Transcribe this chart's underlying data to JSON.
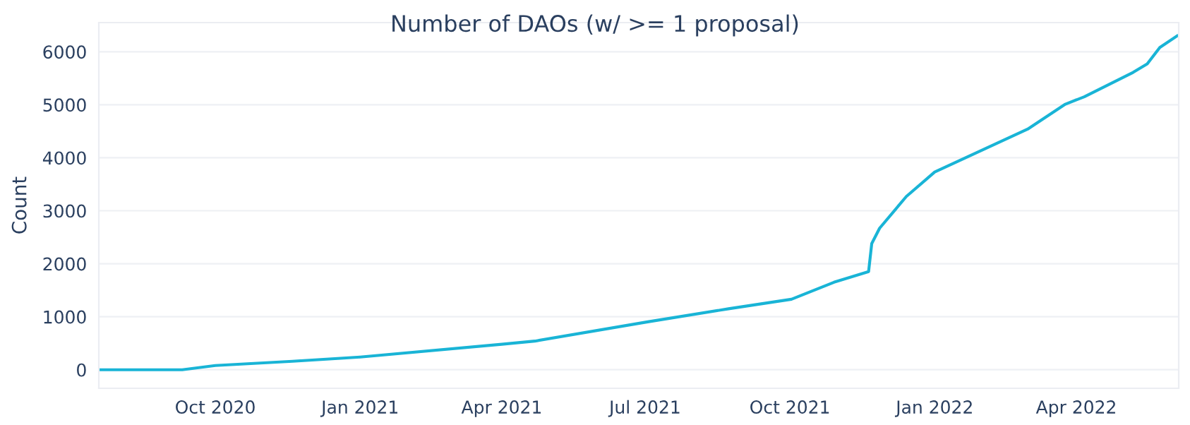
{
  "chart_data": {
    "type": "line",
    "title": "Number of DAOs (w/ >= 1 proposal)",
    "ylabel": "Count",
    "x": [
      "2020-07-19",
      "2020-09-10",
      "2020-10-01",
      "2020-11-19",
      "2021-01-01",
      "2021-04-01",
      "2021-04-22",
      "2021-07-02",
      "2021-08-23",
      "2021-10-02",
      "2021-10-29",
      "2021-11-20",
      "2021-11-22",
      "2021-11-27",
      "2021-12-14",
      "2022-01-01",
      "2022-03-01",
      "2022-03-25",
      "2022-04-06",
      "2022-05-07",
      "2022-05-16",
      "2022-05-24",
      "2022-06-04"
    ],
    "series": [
      {
        "color": "#19b4d6",
        "values": [
          0,
          0,
          80,
          160,
          240,
          480,
          540,
          900,
          1150,
          1330,
          1650,
          1850,
          2380,
          2670,
          3270,
          3730,
          4540,
          5010,
          5150,
          5610,
          5770,
          6080,
          6300
        ]
      }
    ],
    "xlim": [
      "2020-07-19",
      "2022-06-05"
    ],
    "xticks": [
      {
        "value": "2020-10-01",
        "label": "Oct 2020"
      },
      {
        "value": "2021-01-01",
        "label": "Jan 2021"
      },
      {
        "value": "2021-04-01",
        "label": "Apr 2021"
      },
      {
        "value": "2021-07-01",
        "label": "Jul 2021"
      },
      {
        "value": "2021-10-01",
        "label": "Oct 2021"
      },
      {
        "value": "2022-01-01",
        "label": "Jan 2022"
      },
      {
        "value": "2022-04-01",
        "label": "Apr 2022"
      }
    ],
    "ylim": [
      -350,
      6550
    ],
    "yticks": [
      0,
      1000,
      2000,
      3000,
      4000,
      5000,
      6000
    ],
    "grid": "y",
    "line_style": "solid",
    "marker": "none",
    "legend": false
  }
}
